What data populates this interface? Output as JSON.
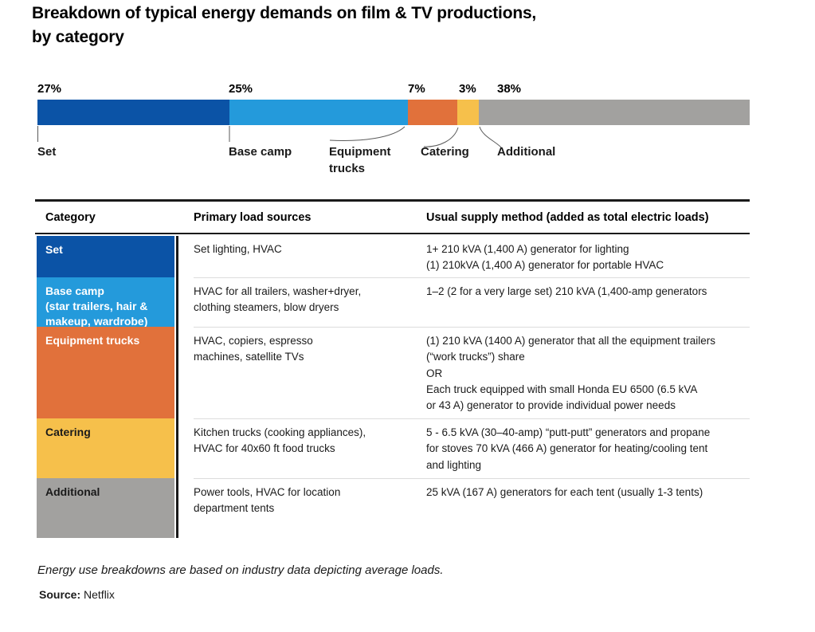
{
  "header": {
    "title_line1": "Breakdown of typical energy demands on film & TV productions,",
    "title_line2": "by category"
  },
  "chart_data": {
    "type": "bar",
    "variant": "horizontal-stacked",
    "title": "Breakdown of typical energy demands on film & TV productions, by category",
    "categories": [
      "Set",
      "Base camp",
      "Equipment trucks",
      "Catering",
      "Additional"
    ],
    "values": [
      27,
      25,
      7,
      3,
      38
    ],
    "unit": "%",
    "pct_labels": [
      "27%",
      "25%",
      "7%",
      "3%",
      "38%"
    ],
    "colors": [
      "#0b53a6",
      "#249adb",
      "#e1713b",
      "#f6c04b",
      "#a2a19f"
    ],
    "xlim": [
      0,
      100
    ],
    "legend": "none",
    "grid": false
  },
  "table": {
    "headers": [
      "Category",
      "Primary load sources",
      "Usual supply method (added as total electric loads)"
    ],
    "rows": [
      {
        "category": "Set",
        "sources": "Set lighting, HVAC",
        "supply": "1+ 210 kVA (1,400 A) generator for lighting\n(1) 210kVA (1,400 A) generator for portable HVAC",
        "color": "#0b53a6",
        "text_color": "#ffffff"
      },
      {
        "category": "Base camp\n(star trailers, hair &\nmakeup, wardrobe)",
        "sources": "HVAC for all trailers, washer+dryer,\nclothing steamers, blow dryers",
        "supply": "1–2 (2 for a very large set) 210 kVA (1,400-amp generators",
        "color": "#249adb",
        "text_color": "#ffffff"
      },
      {
        "category": "Equipment trucks",
        "sources": "HVAC, copiers, espresso\nmachines, satellite TVs",
        "supply": "(1) 210 kVA (1400 A) generator that all the equipment trailers\n(“work trucks”) share\nOR\nEach truck equipped with small Honda EU 6500 (6.5 kVA\nor 43 A) generator to provide individual power needs",
        "color": "#e1713b",
        "text_color": "#ffffff"
      },
      {
        "category": "Catering",
        "sources": "Kitchen trucks (cooking appliances),\nHVAC for 40x60 ft food trucks",
        "supply": "5 - 6.5 kVA (30–40-amp)  “putt-putt” generators and propane\nfor stoves 70 kVA (466 A) generator for heating/cooling tent\nand lighting",
        "color": "#f6c04b",
        "text_color": "#1a1a1a"
      },
      {
        "category": "Additional",
        "sources": "Power tools, HVAC for location\ndepartment tents",
        "supply": "25 kVA (167 A) generators for each tent (usually 1-3 tents)",
        "color": "#a2a19f",
        "text_color": "#1a1a1a"
      }
    ]
  },
  "footer": {
    "footnote": "Energy use breakdowns are based on industry data depicting average loads.",
    "source_label": "Source:",
    "source_value": "Netflix"
  }
}
